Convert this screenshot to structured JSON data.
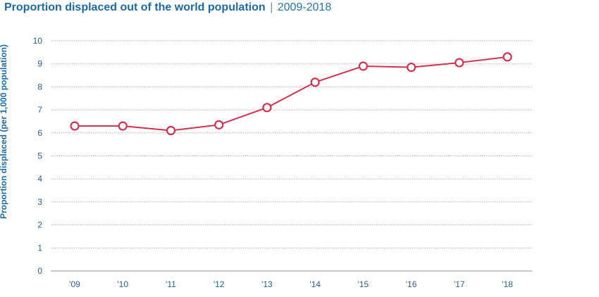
{
  "header": {
    "title": "Proportion displaced out of the world population",
    "separator": "|",
    "subtitle": "2009-2018"
  },
  "chart_data": {
    "type": "line",
    "title": "Proportion displaced out of the world population",
    "subtitle": "2009-2018",
    "ylabel": "Proportion displaced (per 1,000 population)",
    "xlabel": "",
    "categories": [
      "'09",
      "'10",
      "'11",
      "'12",
      "'13",
      "'14",
      "'15",
      "'16",
      "'17",
      "'18"
    ],
    "series": [
      {
        "values": [
          6.3,
          6.3,
          6.1,
          6.35,
          7.1,
          8.2,
          8.9,
          8.85,
          9.05,
          9.3
        ]
      }
    ],
    "ylim": [
      0,
      10
    ],
    "yticks": [
      "0",
      "1",
      "2",
      "3",
      "4",
      "5",
      "6",
      "7",
      "8",
      "9",
      "10"
    ],
    "grid": "horizontal dotted",
    "legend": "none",
    "colors": {
      "line": "#d0324f",
      "marker_fill": "#ffffff",
      "text": "#1e6aa5",
      "grid": "#b5b5b5"
    }
  }
}
